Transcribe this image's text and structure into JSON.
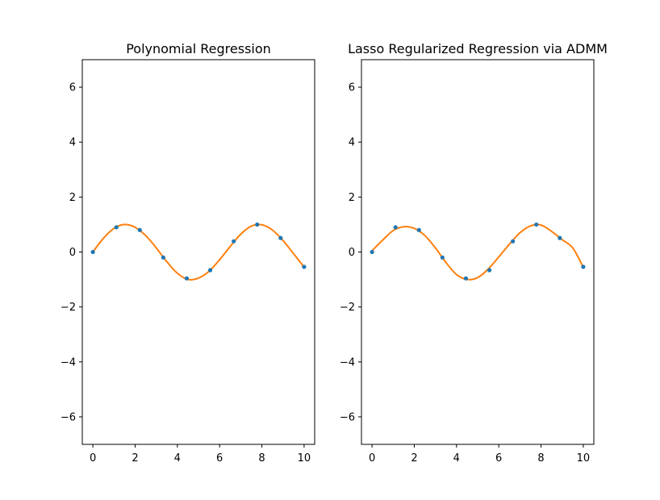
{
  "chart_data": [
    {
      "type": "scatter",
      "title": "Polynomial Regression",
      "xlabel": "",
      "ylabel": "",
      "xlim": [
        -0.5,
        10.5
      ],
      "ylim": [
        -7,
        7
      ],
      "xticks": [
        0,
        2,
        4,
        6,
        8,
        10
      ],
      "yticks": [
        -6,
        -4,
        -2,
        0,
        2,
        4,
        6
      ],
      "grid": false,
      "series": [
        {
          "kind": "points",
          "color": "#1f77b4",
          "x": [
            0,
            1.111,
            2.222,
            3.333,
            4.444,
            5.556,
            6.667,
            7.778,
            8.889,
            10
          ],
          "y": [
            0,
            0.9,
            0.8,
            -0.2,
            -0.96,
            -0.66,
            0.39,
            1.0,
            0.51,
            -0.54
          ]
        },
        {
          "kind": "line",
          "color": "#ff7f0e",
          "x": [
            0,
            0.5,
            1.0,
            1.5,
            2.0,
            2.5,
            3.0,
            3.5,
            4.0,
            4.5,
            5.0,
            5.5,
            6.0,
            6.5,
            7.0,
            7.5,
            8.0,
            8.5,
            9.0,
            9.5,
            10.0
          ],
          "y": [
            0.0,
            0.5,
            0.86,
            1.0,
            0.9,
            0.6,
            0.15,
            -0.35,
            -0.77,
            -1.0,
            -0.95,
            -0.7,
            -0.28,
            0.2,
            0.65,
            0.94,
            0.99,
            0.8,
            0.42,
            -0.06,
            -0.55
          ]
        }
      ]
    },
    {
      "type": "scatter",
      "title": "Lasso Regularized Regression via ADMM",
      "xlabel": "",
      "ylabel": "",
      "xlim": [
        -0.5,
        10.5
      ],
      "ylim": [
        -7,
        7
      ],
      "xticks": [
        0,
        2,
        4,
        6,
        8,
        10
      ],
      "yticks": [
        -6,
        -4,
        -2,
        0,
        2,
        4,
        6
      ],
      "grid": false,
      "series": [
        {
          "kind": "points",
          "color": "#1f77b4",
          "x": [
            0,
            1.111,
            2.222,
            3.333,
            4.444,
            5.556,
            6.667,
            7.778,
            8.889,
            10
          ],
          "y": [
            0,
            0.9,
            0.8,
            -0.2,
            -0.96,
            -0.66,
            0.39,
            1.0,
            0.51,
            -0.54
          ]
        },
        {
          "kind": "line",
          "color": "#ff7f0e",
          "x": [
            0,
            0.5,
            1.0,
            1.5,
            2.0,
            2.5,
            3.0,
            3.5,
            4.0,
            4.5,
            5.0,
            5.5,
            6.0,
            6.5,
            7.0,
            7.5,
            8.0,
            8.5,
            9.0,
            9.5,
            10.0
          ],
          "y": [
            0.05,
            0.43,
            0.78,
            0.92,
            0.86,
            0.6,
            0.15,
            -0.38,
            -0.82,
            -1.0,
            -0.93,
            -0.62,
            -0.18,
            0.28,
            0.7,
            0.95,
            0.98,
            0.75,
            0.45,
            0.15,
            -0.55
          ]
        }
      ]
    }
  ]
}
